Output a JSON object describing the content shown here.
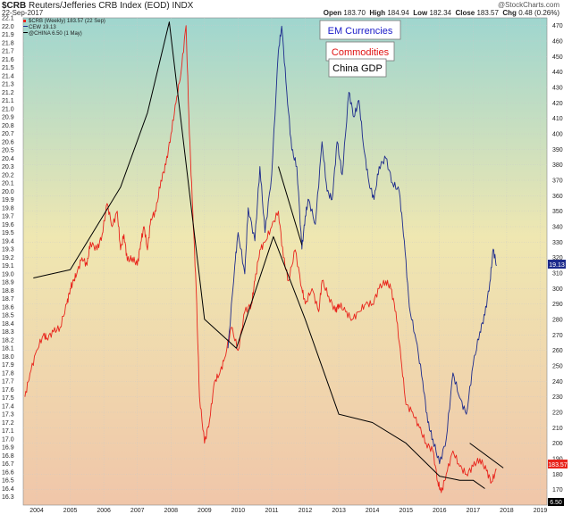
{
  "header": {
    "symbol": "$CRB",
    "name": "Reuters/Jefferies CRB Index (EOD) INDX",
    "date": "22-Sep-2017",
    "open_label": "Open",
    "open": "183.70",
    "high_label": "High",
    "high": "184.94",
    "low_label": "Low",
    "low": "182.34",
    "close_label": "Close",
    "close": "183.57",
    "chg_label": "Chg",
    "chg": "0.48 (0.26%)",
    "brand": "@StockCharts.com"
  },
  "legend": {
    "crb": "$CRB (Weekly) 183.57 (22 Sep)",
    "cew": "CEW 19.13",
    "china": "@CHINA 6.50 (1 May)"
  },
  "labels": {
    "em": "EM Currencies",
    "commodities": "Commodities",
    "china_gdp": "China GDP"
  },
  "colors": {
    "crb": "#e8241c",
    "cew": "#1c2a8c",
    "china": "#000000",
    "em_text": "#1a1ac8",
    "commodities_text": "#e01010",
    "gdp_text": "#000000"
  },
  "chart_data": {
    "type": "line",
    "left_axis": {
      "min": 16.2,
      "max": 22.1,
      "ticks": [
        "16.3",
        "16.4",
        "16.5",
        "16.6",
        "16.7",
        "16.8",
        "16.9",
        "17.0",
        "17.1",
        "17.2",
        "17.3",
        "17.4",
        "17.5",
        "17.6",
        "17.7",
        "17.8",
        "17.9",
        "18.0",
        "18.1",
        "18.2",
        "18.3",
        "18.4",
        "18.5",
        "18.6",
        "18.7",
        "18.8",
        "18.9",
        "19.0",
        "19.1",
        "19.2",
        "19.3",
        "19.4",
        "19.5",
        "19.6",
        "19.7",
        "19.8",
        "19.9",
        "20.0",
        "20.1",
        "20.2",
        "20.3",
        "20.4",
        "20.5",
        "20.6",
        "20.7",
        "20.8",
        "20.9",
        "21.0",
        "21.1",
        "21.2",
        "21.3",
        "21.4",
        "21.5",
        "21.6",
        "21.7",
        "21.8",
        "21.9",
        "22.0",
        "22.1"
      ]
    },
    "right_axis": {
      "min": 160,
      "max": 475,
      "ticks": [
        "170",
        "180",
        "190",
        "200",
        "210",
        "220",
        "230",
        "240",
        "250",
        "260",
        "270",
        "280",
        "290",
        "300",
        "310",
        "320",
        "330",
        "340",
        "350",
        "360",
        "370",
        "380",
        "390",
        "400",
        "410",
        "420",
        "430",
        "440",
        "450",
        "460",
        "470"
      ]
    },
    "x_axis": {
      "min": 2003.6,
      "max": 2019.2,
      "ticks": [
        "2004",
        "2005",
        "2006",
        "2007",
        "2008",
        "2009",
        "2010",
        "2011",
        "2012",
        "2013",
        "2014",
        "2015",
        "2016",
        "2017",
        "2018",
        "2019"
      ]
    },
    "grid": true,
    "series": [
      {
        "name": "$CRB (Weekly) 183.57 (22 Sep)",
        "axis": "right",
        "x": [
          2003.65,
          2003.8,
          2004.0,
          2004.2,
          2004.3,
          2004.5,
          2004.7,
          2004.9,
          2005.0,
          2005.1,
          2005.2,
          2005.35,
          2005.5,
          2005.6,
          2005.8,
          2005.95,
          2006.1,
          2006.25,
          2006.4,
          2006.5,
          2006.6,
          2006.7,
          2006.85,
          2007.0,
          2007.1,
          2007.2,
          2007.3,
          2007.4,
          2007.55,
          2007.7,
          2007.85,
          2008.0,
          2008.15,
          2008.3,
          2008.45,
          2008.55,
          2008.65,
          2008.75,
          2008.85,
          2009.0,
          2009.15,
          2009.3,
          2009.45,
          2009.6,
          2009.8,
          2010.0,
          2010.2,
          2010.4,
          2010.5,
          2010.65,
          2010.8,
          2011.0,
          2011.2,
          2011.35,
          2011.5,
          2011.7,
          2011.9,
          2012.0,
          2012.2,
          2012.4,
          2012.5,
          2012.7,
          2012.9,
          2013.0,
          2013.2,
          2013.4,
          2013.6,
          2013.8,
          2014.0,
          2014.2,
          2014.4,
          2014.55,
          2014.7,
          2014.85,
          2015.0,
          2015.2,
          2015.4,
          2015.6,
          2015.8,
          2015.95,
          2016.05,
          2016.2,
          2016.4,
          2016.6,
          2016.8,
          2017.0,
          2017.2,
          2017.4,
          2017.55,
          2017.7
        ],
        "values": [
          230,
          245,
          260,
          270,
          268,
          272,
          275,
          290,
          300,
          305,
          310,
          320,
          315,
          330,
          325,
          335,
          355,
          340,
          350,
          325,
          335,
          318,
          320,
          315,
          330,
          340,
          325,
          345,
          350,
          370,
          380,
          400,
          420,
          440,
          470,
          400,
          350,
          300,
          230,
          200,
          215,
          240,
          245,
          255,
          275,
          260,
          285,
          290,
          305,
          325,
          330,
          340,
          350,
          320,
          305,
          325,
          300,
          290,
          300,
          285,
          305,
          295,
          285,
          290,
          285,
          280,
          285,
          290,
          290,
          300,
          305,
          300,
          285,
          255,
          225,
          220,
          210,
          200,
          195,
          175,
          168,
          180,
          195,
          185,
          180,
          185,
          190,
          182,
          175,
          183
        ]
      },
      {
        "name": "CEW 19.13",
        "axis": "left",
        "x": [
          2009.7,
          2009.9,
          2010.0,
          2010.2,
          2010.3,
          2010.5,
          2010.65,
          2010.8,
          2011.0,
          2011.2,
          2011.3,
          2011.45,
          2011.6,
          2011.75,
          2011.9,
          2012.0,
          2012.1,
          2012.3,
          2012.5,
          2012.65,
          2012.8,
          2012.95,
          2013.1,
          2013.3,
          2013.45,
          2013.6,
          2013.75,
          2013.9,
          2014.05,
          2014.2,
          2014.4,
          2014.6,
          2014.8,
          2014.95,
          2015.1,
          2015.3,
          2015.5,
          2015.65,
          2015.8,
          2016.0,
          2016.2,
          2016.4,
          2016.6,
          2016.8,
          2017.0,
          2017.2,
          2017.35,
          2017.5,
          2017.6,
          2017.7
        ],
        "values": [
          18.1,
          19.1,
          19.5,
          19.0,
          19.8,
          19.4,
          20.3,
          19.5,
          20.2,
          21.7,
          22.0,
          21.2,
          20.5,
          20.3,
          19.3,
          19.7,
          19.9,
          19.6,
          20.6,
          20.0,
          19.9,
          20.6,
          20.2,
          21.2,
          20.9,
          21.1,
          20.5,
          20.1,
          19.9,
          20.3,
          20.4,
          20.1,
          20.0,
          19.4,
          18.6,
          18.2,
          17.7,
          17.2,
          17.0,
          16.7,
          17.0,
          17.8,
          17.5,
          17.3,
          17.9,
          18.3,
          18.5,
          18.9,
          19.3,
          19.1
        ]
      },
      {
        "name": "@CHINA 6.50 (1 May)",
        "axis": "left",
        "x": [
          2003.9,
          2005.0,
          2006.5,
          2007.3,
          2007.95,
          2009.0,
          2009.95,
          2011.05,
          2012.0,
          2013.0,
          2014.0,
          2015.0,
          2016.0,
          2016.6,
          2017.0,
          2017.35
        ],
        "values": [
          18.95,
          19.05,
          20.05,
          20.95,
          22.05,
          18.45,
          18.1,
          19.45,
          18.45,
          17.3,
          17.2,
          16.95,
          16.55,
          16.5,
          16.5,
          16.4
        ]
      }
    ],
    "trendlines": [
      {
        "x": [
          2011.2,
          2011.9
        ],
        "values": [
          20.3,
          19.35
        ],
        "axis": "left"
      },
      {
        "x": [
          2016.9,
          2017.9
        ],
        "values": [
          16.95,
          16.65
        ],
        "axis": "left"
      }
    ],
    "title": "",
    "xlabel": "",
    "ylabel": ""
  }
}
